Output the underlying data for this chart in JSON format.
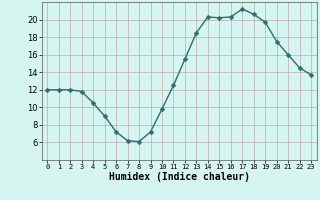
{
  "x": [
    0,
    1,
    2,
    3,
    4,
    5,
    6,
    7,
    8,
    9,
    10,
    11,
    12,
    13,
    14,
    15,
    16,
    17,
    18,
    19,
    20,
    21,
    22,
    23
  ],
  "y": [
    12,
    12,
    12,
    11.8,
    10.5,
    9,
    7.2,
    6.2,
    6.1,
    7.2,
    9.8,
    12.5,
    15.5,
    18.5,
    20.3,
    20.2,
    20.3,
    21.2,
    20.6,
    19.7,
    17.5,
    16,
    14.5,
    13.7
  ],
  "line_color": "#2d6e6e",
  "marker": "D",
  "markersize": 2.5,
  "linewidth": 1.0,
  "bg_color": "#d4f5f0",
  "grid_color": "#c0aaaa",
  "xlabel": "Humidex (Indice chaleur)",
  "xlabel_fontsize": 7,
  "tick_fontsize": 6,
  "ylim": [
    4,
    22
  ],
  "xlim": [
    -0.5,
    23.5
  ],
  "yticks": [
    6,
    8,
    10,
    12,
    14,
    16,
    18,
    20
  ],
  "xticks": [
    0,
    1,
    2,
    3,
    4,
    5,
    6,
    7,
    8,
    9,
    10,
    11,
    12,
    13,
    14,
    15,
    16,
    17,
    18,
    19,
    20,
    21,
    22,
    23
  ]
}
